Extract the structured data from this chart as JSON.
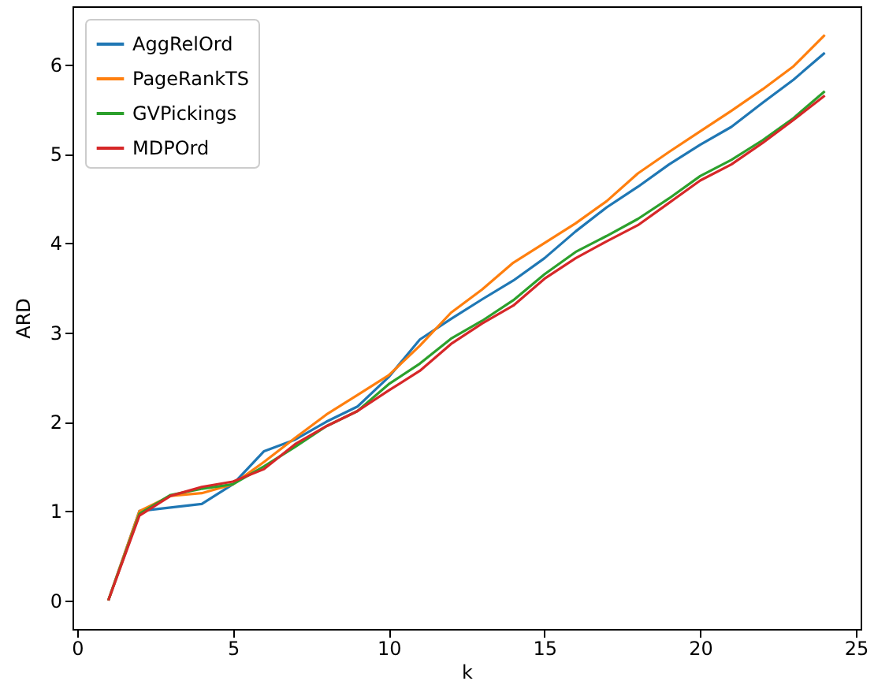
{
  "chart_data": {
    "type": "line",
    "xlabel": "k",
    "ylabel": "ARD",
    "x": [
      1,
      2,
      3,
      4,
      5,
      6,
      7,
      8,
      9,
      10,
      11,
      12,
      13,
      14,
      15,
      16,
      17,
      18,
      19,
      20,
      21,
      22,
      23,
      24
    ],
    "xlim": [
      -0.15,
      25.15
    ],
    "xticks": [
      0,
      5,
      10,
      15,
      20,
      25
    ],
    "ylim": [
      -0.32,
      6.65
    ],
    "yticks": [
      0,
      1,
      2,
      3,
      4,
      5,
      6
    ],
    "grid": false,
    "legend": "top left",
    "series": [
      {
        "name": "AggRelOrd",
        "color": "#1f77b4",
        "values": [
          0,
          1.0,
          1.04,
          1.08,
          1.3,
          1.67,
          1.8,
          2.0,
          2.17,
          2.5,
          2.92,
          3.15,
          3.37,
          3.58,
          3.83,
          4.13,
          4.4,
          4.63,
          4.88,
          5.1,
          5.3,
          5.57,
          5.83,
          6.13
        ]
      },
      {
        "name": "PageRankTS",
        "color": "#ff7f0e",
        "values": [
          0,
          1.0,
          1.17,
          1.2,
          1.3,
          1.55,
          1.82,
          2.08,
          2.3,
          2.52,
          2.85,
          3.22,
          3.48,
          3.78,
          4.0,
          4.22,
          4.47,
          4.78,
          5.02,
          5.25,
          5.48,
          5.72,
          5.98,
          6.33
        ]
      },
      {
        "name": "GVPickings",
        "color": "#2ca02c",
        "values": [
          0,
          0.97,
          1.18,
          1.25,
          1.3,
          1.5,
          1.72,
          1.95,
          2.12,
          2.42,
          2.65,
          2.93,
          3.13,
          3.36,
          3.65,
          3.9,
          4.08,
          4.27,
          4.5,
          4.75,
          4.93,
          5.15,
          5.4,
          5.7
        ]
      },
      {
        "name": "MDPOrd",
        "color": "#d62728",
        "values": [
          0,
          0.95,
          1.17,
          1.27,
          1.33,
          1.47,
          1.75,
          1.95,
          2.12,
          2.35,
          2.57,
          2.87,
          3.1,
          3.3,
          3.6,
          3.83,
          4.02,
          4.2,
          4.45,
          4.7,
          4.88,
          5.12,
          5.38,
          5.65
        ]
      }
    ]
  }
}
